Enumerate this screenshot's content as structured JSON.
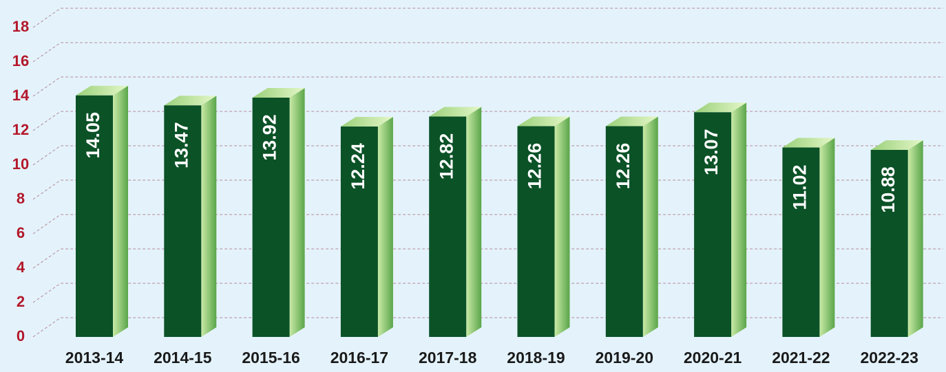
{
  "chart_data": {
    "type": "bar",
    "categories": [
      "2013-14",
      "2014-15",
      "2015-16",
      "2016-17",
      "2017-18",
      "2018-19",
      "2019-20",
      "2020-21",
      "2021-22",
      "2022-23"
    ],
    "values": [
      14.05,
      13.47,
      13.92,
      12.24,
      12.82,
      12.26,
      12.26,
      13.07,
      11.02,
      10.88
    ],
    "color": "#0b5227",
    "ylim": [
      0,
      18
    ],
    "yticks": [
      0,
      2,
      4,
      6,
      8,
      10,
      12,
      14,
      16,
      18
    ],
    "grid": true
  }
}
